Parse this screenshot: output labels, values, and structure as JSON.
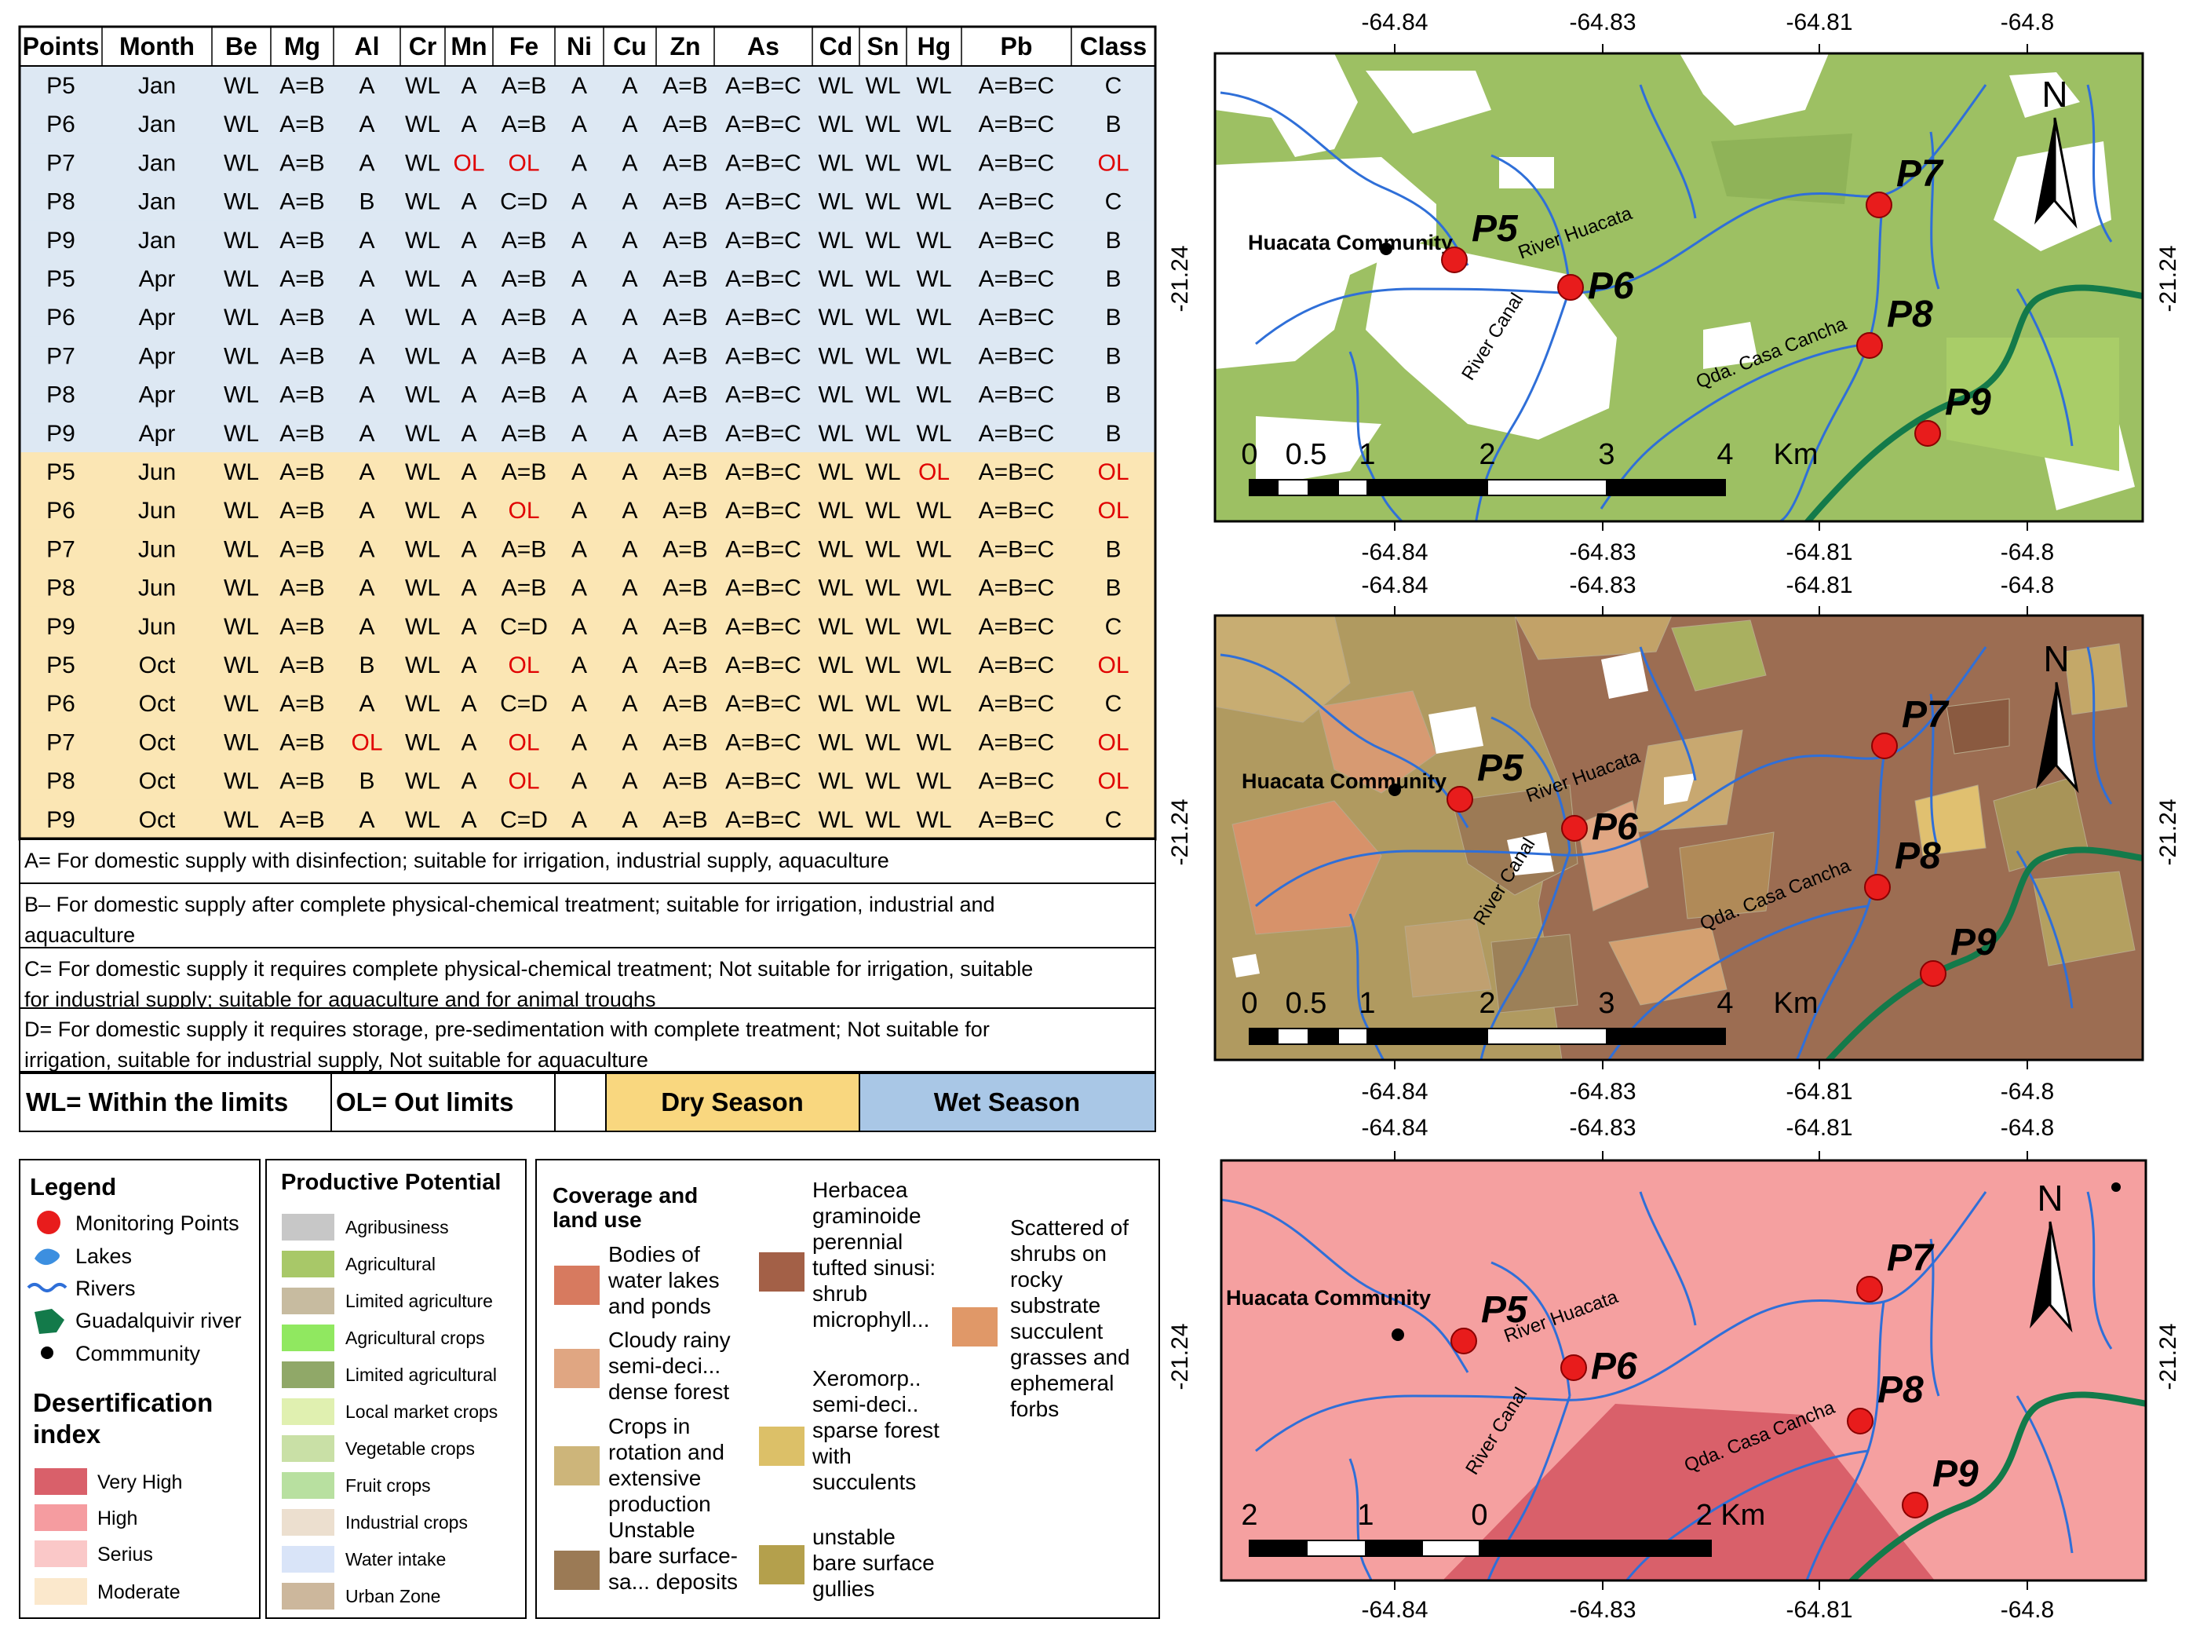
{
  "table": {
    "headers": [
      "Points",
      "Month",
      "Be",
      "Mg",
      "Al",
      "Cr",
      "Mn",
      "Fe",
      "Ni",
      "Cu",
      "Zn",
      "As",
      "Cd",
      "Sn",
      "Hg",
      "Pb",
      "Class"
    ],
    "rows": [
      {
        "season": "wet",
        "cells": [
          "P5",
          "Jan",
          "WL",
          "A=B",
          "A",
          "WL",
          "A",
          "A=B",
          "A",
          "A",
          "A=B",
          "A=B=C",
          "WL",
          "WL",
          "WL",
          "A=B=C",
          "C"
        ]
      },
      {
        "season": "wet",
        "cells": [
          "P6",
          "Jan",
          "WL",
          "A=B",
          "A",
          "WL",
          "A",
          "A=B",
          "A",
          "A",
          "A=B",
          "A=B=C",
          "WL",
          "WL",
          "WL",
          "A=B=C",
          "B"
        ]
      },
      {
        "season": "wet",
        "cells": [
          "P7",
          "Jan",
          "WL",
          "A=B",
          "A",
          "WL",
          "OL",
          "OL",
          "A",
          "A",
          "A=B",
          "A=B=C",
          "WL",
          "WL",
          "WL",
          "A=B=C",
          "OL"
        ]
      },
      {
        "season": "wet",
        "cells": [
          "P8",
          "Jan",
          "WL",
          "A=B",
          "B",
          "WL",
          "A",
          "C=D",
          "A",
          "A",
          "A=B",
          "A=B=C",
          "WL",
          "WL",
          "WL",
          "A=B=C",
          "C"
        ]
      },
      {
        "season": "wet",
        "cells": [
          "P9",
          "Jan",
          "WL",
          "A=B",
          "A",
          "WL",
          "A",
          "A=B",
          "A",
          "A",
          "A=B",
          "A=B=C",
          "WL",
          "WL",
          "WL",
          "A=B=C",
          "B"
        ]
      },
      {
        "season": "wet",
        "cells": [
          "P5",
          "Apr",
          "WL",
          "A=B",
          "A",
          "WL",
          "A",
          "A=B",
          "A",
          "A",
          "A=B",
          "A=B=C",
          "WL",
          "WL",
          "WL",
          "A=B=C",
          "B"
        ]
      },
      {
        "season": "wet",
        "cells": [
          "P6",
          "Apr",
          "WL",
          "A=B",
          "A",
          "WL",
          "A",
          "A=B",
          "A",
          "A",
          "A=B",
          "A=B=C",
          "WL",
          "WL",
          "WL",
          "A=B=C",
          "B"
        ]
      },
      {
        "season": "wet",
        "cells": [
          "P7",
          "Apr",
          "WL",
          "A=B",
          "A",
          "WL",
          "A",
          "A=B",
          "A",
          "A",
          "A=B",
          "A=B=C",
          "WL",
          "WL",
          "WL",
          "A=B=C",
          "B"
        ]
      },
      {
        "season": "wet",
        "cells": [
          "P8",
          "Apr",
          "WL",
          "A=B",
          "A",
          "WL",
          "A",
          "A=B",
          "A",
          "A",
          "A=B",
          "A=B=C",
          "WL",
          "WL",
          "WL",
          "A=B=C",
          "B"
        ]
      },
      {
        "season": "wet",
        "cells": [
          "P9",
          "Apr",
          "WL",
          "A=B",
          "A",
          "WL",
          "A",
          "A=B",
          "A",
          "A",
          "A=B",
          "A=B=C",
          "WL",
          "WL",
          "WL",
          "A=B=C",
          "B"
        ]
      },
      {
        "season": "dry",
        "cells": [
          "P5",
          "Jun",
          "WL",
          "A=B",
          "A",
          "WL",
          "A",
          "A=B",
          "A",
          "A",
          "A=B",
          "A=B=C",
          "WL",
          "WL",
          "OL",
          "A=B=C",
          "OL"
        ]
      },
      {
        "season": "dry",
        "cells": [
          "P6",
          "Jun",
          "WL",
          "A=B",
          "A",
          "WL",
          "A",
          "OL",
          "A",
          "A",
          "A=B",
          "A=B=C",
          "WL",
          "WL",
          "WL",
          "A=B=C",
          "OL"
        ]
      },
      {
        "season": "dry",
        "cells": [
          "P7",
          "Jun",
          "WL",
          "A=B",
          "A",
          "WL",
          "A",
          "A=B",
          "A",
          "A",
          "A=B",
          "A=B=C",
          "WL",
          "WL",
          "WL",
          "A=B=C",
          "B"
        ]
      },
      {
        "season": "dry",
        "cells": [
          "P8",
          "Jun",
          "WL",
          "A=B",
          "A",
          "WL",
          "A",
          "A=B",
          "A",
          "A",
          "A=B",
          "A=B=C",
          "WL",
          "WL",
          "WL",
          "A=B=C",
          "B"
        ]
      },
      {
        "season": "dry",
        "cells": [
          "P9",
          "Jun",
          "WL",
          "A=B",
          "A",
          "WL",
          "A",
          "C=D",
          "A",
          "A",
          "A=B",
          "A=B=C",
          "WL",
          "WL",
          "WL",
          "A=B=C",
          "C"
        ]
      },
      {
        "season": "dry",
        "cells": [
          "P5",
          "Oct",
          "WL",
          "A=B",
          "B",
          "WL",
          "A",
          "OL",
          "A",
          "A",
          "A=B",
          "A=B=C",
          "WL",
          "WL",
          "WL",
          "A=B=C",
          "OL"
        ]
      },
      {
        "season": "dry",
        "cells": [
          "P6",
          "Oct",
          "WL",
          "A=B",
          "A",
          "WL",
          "A",
          "C=D",
          "A",
          "A",
          "A=B",
          "A=B=C",
          "WL",
          "WL",
          "WL",
          "A=B=C",
          "C"
        ]
      },
      {
        "season": "dry",
        "cells": [
          "P7",
          "Oct",
          "WL",
          "A=B",
          "OL",
          "WL",
          "A",
          "OL",
          "A",
          "A",
          "A=B",
          "A=B=C",
          "WL",
          "WL",
          "WL",
          "A=B=C",
          "OL"
        ]
      },
      {
        "season": "dry",
        "cells": [
          "P8",
          "Oct",
          "WL",
          "A=B",
          "B",
          "WL",
          "A",
          "OL",
          "A",
          "A",
          "A=B",
          "A=B=C",
          "WL",
          "WL",
          "WL",
          "A=B=C",
          "OL"
        ]
      },
      {
        "season": "dry",
        "cells": [
          "P9",
          "Oct",
          "WL",
          "A=B",
          "A",
          "WL",
          "A",
          "C=D",
          "A",
          "A",
          "A=B",
          "A=B=C",
          "WL",
          "WL",
          "WL",
          "A=B=C",
          "C"
        ]
      }
    ],
    "notes": [
      [
        "A= For domestic supply with disinfection; suitable for irrigation, industrial supply, aquaculture"
      ],
      [
        "B– For domestic supply after complete physical-chemical treatment; suitable for irrigation, industrial and",
        "aquaculture"
      ],
      [
        "C= For domestic supply it requires complete physical-chemical treatment; Not suitable for irrigation, suitable",
        "for industrial supply; suitable for aquaculture and for animal troughs"
      ],
      [
        "D= For domestic supply it requires storage, pre-sedimentation with complete treatment; Not suitable for",
        "irrigation, suitable for industrial supply, Not suitable for aquaculture"
      ]
    ],
    "key": {
      "wl": "WL= Within the limits",
      "ol": "OL= Out limits",
      "dry": "Dry Season",
      "wet": "Wet Season"
    }
  },
  "colors": {
    "wet_row": "#dde8f3",
    "dry_row": "#fbe6b4",
    "dry_key": "#f9d77f",
    "wet_key": "#a9c7e6",
    "out_limit": "#e00000",
    "river": "#2f6fd8",
    "guadalquivir": "#137a4a",
    "point": "#e81c1c",
    "map1_base": "#9dc063",
    "map2_base": "#9c6d52",
    "map3_base": "#f5a0a0",
    "map3_very_high": "#d9606a"
  },
  "legend": {
    "title": "Legend",
    "items": [
      {
        "label": "Monitoring Points",
        "icon": "red-dot-icon"
      },
      {
        "label": "Lakes",
        "icon": "lake-icon"
      },
      {
        "label": "Rivers",
        "icon": "river-icon"
      },
      {
        "label": "Guadalquivir river",
        "icon": "guadalquivir-icon"
      },
      {
        "label": "Commmunity",
        "icon": "community-dot-icon"
      }
    ],
    "desert_title": [
      "Desertification",
      "index"
    ],
    "desert_items": [
      {
        "label": "Very High",
        "color": "#d9606a"
      },
      {
        "label": "High",
        "color": "#f59ca0"
      },
      {
        "label": "Serius",
        "color": "#fac8c8"
      },
      {
        "label": "Moderate",
        "color": "#fbe8cc"
      }
    ]
  },
  "productive": {
    "title": "Productive Potential",
    "items": [
      {
        "label": "Agribusiness",
        "color": "#c7c7c7"
      },
      {
        "label": "Agricultural",
        "color": "#a8c868"
      },
      {
        "label": "Limited agriculture",
        "color": "#c7bba0"
      },
      {
        "label": "Agricultural crops",
        "color": "#90e860"
      },
      {
        "label": "Limited agricultural",
        "color": "#90a868"
      },
      {
        "label": "Local market crops",
        "color": "#e0f0b0"
      },
      {
        "label": "Vegetable crops",
        "color": "#c9e0a6"
      },
      {
        "label": "Fruit crops",
        "color": "#b8e0a0"
      },
      {
        "label": "Industrial crops",
        "color": "#ecdfcf"
      },
      {
        "label": "Water intake",
        "color": "#d9e4f8"
      },
      {
        "label": "Urban Zone",
        "color": "#ccb79c"
      }
    ]
  },
  "coverage": {
    "title": [
      "Coverage and",
      "land use"
    ],
    "col1": [
      {
        "lines": [
          "Bodies of",
          "water lakes",
          "and ponds"
        ],
        "color": "#d77a5f"
      },
      {
        "lines": [
          "Cloudy rainy",
          "semi-deci...",
          "dense forest"
        ],
        "color": "#e0a682"
      },
      {
        "lines": [
          "Crops in",
          "rotation and",
          "extensive",
          "production"
        ],
        "color": "#cdb57a"
      },
      {
        "lines": [
          "Unstable",
          "bare surface-",
          "sa... deposits"
        ],
        "color": "#9b7a55"
      }
    ],
    "col2": [
      {
        "lines": [
          "Herbacea",
          "graminoide",
          "perennial",
          "tufted sinusi:",
          "shrub",
          "microphyll..."
        ],
        "color": "#a36047"
      },
      {
        "lines": [
          "Xeromorp..",
          "semi-deci..",
          "sparse forest",
          "with",
          "succulents"
        ],
        "color": "#dcc068"
      },
      {
        "lines": [
          "unstable",
          "bare surface",
          "gullies"
        ],
        "color": "#b4a04c"
      }
    ],
    "col3": [
      {
        "lines": [
          "Scattered of",
          "shrubs on",
          "rocky",
          "substrate",
          "succulent",
          "grasses and",
          "ephemeral",
          "forbs"
        ],
        "color": "#e09868"
      }
    ]
  },
  "maps": {
    "top_ticks": [
      "-64.84",
      "-64.83",
      "-64.81",
      "-64.8"
    ],
    "lat_label": "-21.24",
    "community": "Huacata Community",
    "points": [
      "P5",
      "P6",
      "P7",
      "P8",
      "P9"
    ],
    "river_huacata": "River Huacata",
    "river_canal": "River Canal",
    "qda": "Qda. Casa Cancha",
    "north": "N",
    "scale_labels": [
      "0",
      "0.5",
      "1",
      "2",
      "3",
      "4",
      "Km"
    ],
    "scale_labels_3": [
      "2",
      "1",
      "0",
      "2 Km"
    ]
  }
}
